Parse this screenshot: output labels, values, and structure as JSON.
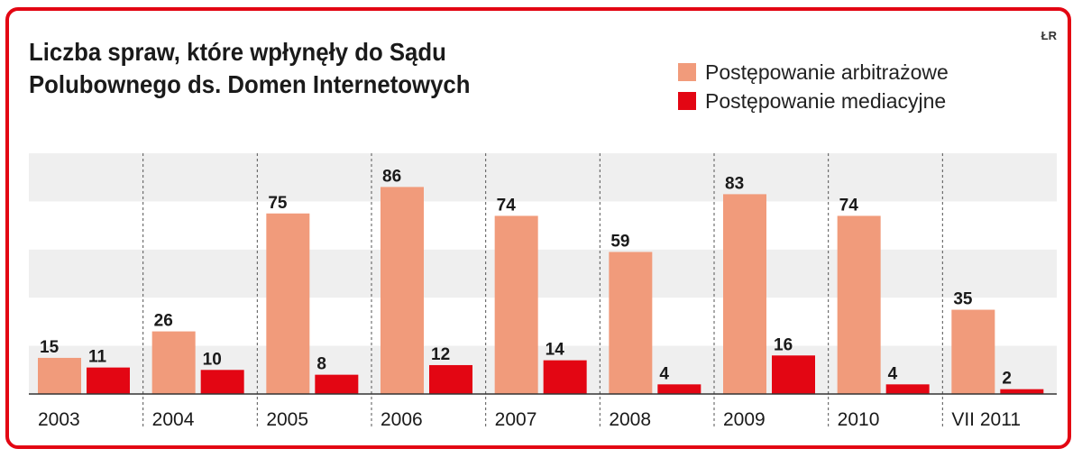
{
  "title_lines": [
    "Liczba spraw, które wpłynęły do Sądu",
    "Polubownego ds. Domen Internetowych"
  ],
  "credit": "ŁR",
  "colors": {
    "arbitration": "#f19b7b",
    "mediation": "#e30613",
    "frame": "#e30613",
    "band": "#efefef"
  },
  "chart_data": {
    "type": "bar",
    "categories": [
      "2003",
      "2004",
      "2005",
      "2006",
      "2007",
      "2008",
      "2009",
      "2010",
      "VII 2011"
    ],
    "series": [
      {
        "name": "Postępowanie arbitrażowe",
        "values": [
          15,
          26,
          75,
          86,
          74,
          59,
          83,
          74,
          35
        ]
      },
      {
        "name": "Postępowanie mediacyjne",
        "values": [
          11,
          10,
          8,
          12,
          14,
          4,
          16,
          4,
          2
        ]
      }
    ],
    "ylim": [
      0,
      100
    ],
    "grid": "horizontal bands",
    "legend": "top-right"
  }
}
